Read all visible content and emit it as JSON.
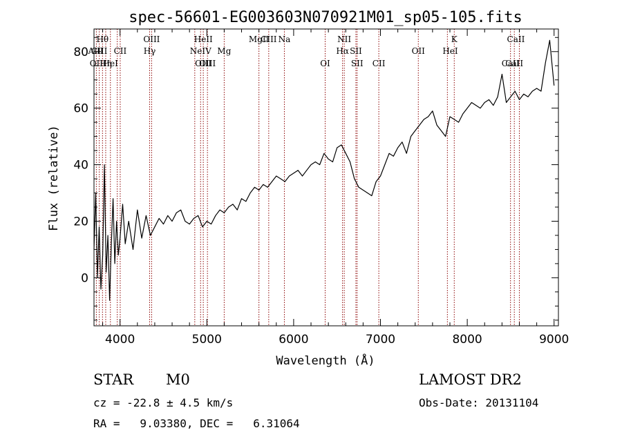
{
  "figure": {
    "title": "spec-56601-EG003603N070921M01_sp05-105.fits"
  },
  "info": {
    "class": "STAR",
    "subclass": "M0",
    "survey": "LAMOST DR2",
    "cz": "cz = -22.8 ± 4.5 km/s",
    "obs_date": "Obs-Date: 20131104",
    "radec": "RA =   9.03380, DEC =   6.31064"
  },
  "colors": {
    "spectrum": "#000000",
    "line_marker": "#8b0000",
    "background": "#ffffff"
  },
  "chart_data": {
    "type": "line",
    "title": "spec-56601-EG003603N070921M01_sp05-105.fits",
    "xlabel": "Wavelength (Å)",
    "ylabel": "Flux (relative)",
    "xlim": [
      3700,
      9050
    ],
    "ylim": [
      -17,
      88
    ],
    "xticks": [
      4000,
      5000,
      6000,
      7000,
      8000,
      9000
    ],
    "yticks": [
      0,
      20,
      40,
      60,
      80
    ],
    "grid": false,
    "series": [
      {
        "x": [
          3700,
          3720,
          3740,
          3760,
          3780,
          3800,
          3820,
          3840,
          3860,
          3880,
          3900,
          3920,
          3940,
          3960,
          3980,
          4000,
          4030,
          4060,
          4100,
          4150,
          4200,
          4250,
          4300,
          4350,
          4400,
          4450,
          4500,
          4550,
          4600,
          4650,
          4700,
          4750,
          4800,
          4850,
          4900,
          4950,
          5000,
          5050,
          5100,
          5150,
          5200,
          5250,
          5300,
          5350,
          5400,
          5450,
          5500,
          5550,
          5600,
          5650,
          5700,
          5750,
          5800,
          5850,
          5900,
          5950,
          6000,
          6050,
          6100,
          6150,
          6200,
          6250,
          6300,
          6350,
          6400,
          6450,
          6500,
          6550,
          6600,
          6650,
          6700,
          6750,
          6800,
          6850,
          6900,
          6950,
          7000,
          7050,
          7100,
          7150,
          7200,
          7250,
          7300,
          7350,
          7400,
          7450,
          7500,
          7550,
          7600,
          7650,
          7700,
          7750,
          7800,
          7850,
          7900,
          7950,
          8000,
          8050,
          8100,
          8150,
          8200,
          8250,
          8300,
          8350,
          8400,
          8450,
          8500,
          8550,
          8600,
          8650,
          8700,
          8750,
          8800,
          8850,
          8900,
          8950,
          9000
        ],
        "y": [
          10,
          30,
          0,
          18,
          -4,
          8,
          40,
          2,
          15,
          -8,
          12,
          28,
          5,
          20,
          8,
          14,
          26,
          12,
          20,
          10,
          24,
          14,
          22,
          15,
          18,
          21,
          19,
          22,
          20,
          23,
          24,
          20,
          19,
          21,
          22,
          18,
          20,
          19,
          22,
          24,
          23,
          25,
          26,
          24,
          28,
          27,
          30,
          32,
          31,
          33,
          32,
          34,
          36,
          35,
          34,
          36,
          37,
          38,
          36,
          38,
          40,
          41,
          40,
          44,
          42,
          41,
          46,
          47,
          44,
          41,
          35,
          32,
          31,
          30,
          29,
          34,
          36,
          40,
          44,
          43,
          46,
          48,
          44,
          50,
          52,
          54,
          56,
          57,
          59,
          54,
          52,
          50,
          57,
          56,
          55,
          58,
          60,
          62,
          61,
          60,
          62,
          63,
          61,
          64,
          72,
          62,
          64,
          66,
          63,
          65,
          64,
          66,
          67,
          66,
          76,
          84,
          68
        ]
      }
    ],
    "spectral_lines": [
      {
        "label": "Hθ",
        "x": 3798,
        "row": 1
      },
      {
        "label": "AlII",
        "x": 3720,
        "row": 2
      },
      {
        "label": "CIII",
        "x": 3761,
        "row": 2
      },
      {
        "label": "OII",
        "x": 3727,
        "row": 3
      },
      {
        "label": "Hη",
        "x": 3835,
        "row": 3
      },
      {
        "label": "HeI",
        "x": 3889,
        "row": 3
      },
      {
        "label": "CII",
        "x": 4002,
        "row": 2
      },
      {
        "label": "OIII",
        "x": 4364,
        "row": 1
      },
      {
        "label": "Hγ",
        "x": 4341,
        "row": 2
      },
      {
        "label": "HeII",
        "x": 4960,
        "row": 1
      },
      {
        "label": "NeIV",
        "x": 4928,
        "row": 2
      },
      {
        "label": "OIII",
        "x": 4959,
        "row": 3
      },
      {
        "label": "OIII",
        "x": 5007,
        "row": 3
      },
      {
        "label": "Mg",
        "x": 5200,
        "row": 2
      },
      {
        "label": "MgII",
        "x": 5600,
        "row": 1
      },
      {
        "label": "CIII",
        "x": 5713,
        "row": 1
      },
      {
        "label": "Na",
        "x": 5893,
        "row": 1
      },
      {
        "label": "NII",
        "x": 6583,
        "row": 1
      },
      {
        "label": "Hα",
        "x": 6563,
        "row": 2
      },
      {
        "label": "SII",
        "x": 6717,
        "row": 2
      },
      {
        "label": "OI",
        "x": 6363,
        "row": 3
      },
      {
        "label": "SII",
        "x": 6731,
        "row": 3
      },
      {
        "label": "CII",
        "x": 6981,
        "row": 3
      },
      {
        "label": "OII",
        "x": 7436,
        "row": 2
      },
      {
        "label": "HeI",
        "x": 7804,
        "row": 2
      },
      {
        "label": "K",
        "x": 7850,
        "row": 1
      },
      {
        "label": "CaII",
        "x": 8560,
        "row": 1
      },
      {
        "label": "CaII",
        "x": 8498,
        "row": 3
      },
      {
        "label": "CaII",
        "x": 8542,
        "row": 3
      }
    ],
    "marker_lines": [
      3727,
      3761,
      3798,
      3835,
      3889,
      3968,
      4002,
      4341,
      4364,
      4861,
      4928,
      4959,
      5007,
      5200,
      5600,
      5713,
      5893,
      6363,
      6563,
      6583,
      6717,
      6731,
      6981,
      7436,
      7771,
      7850,
      8498,
      8542,
      8600
    ]
  }
}
